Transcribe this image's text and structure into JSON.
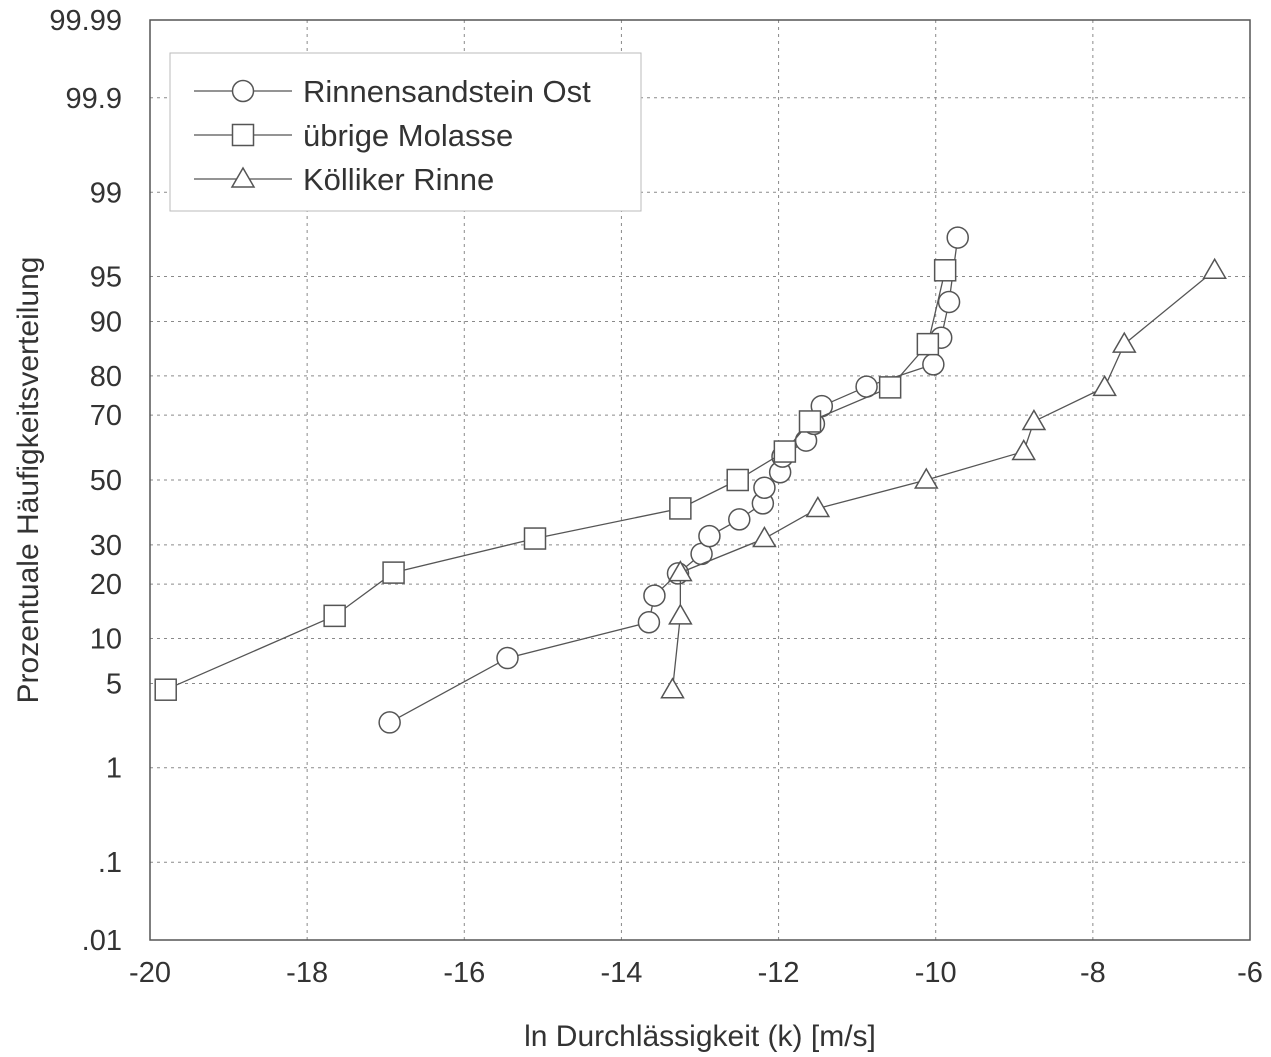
{
  "chart_data": {
    "type": "line",
    "title": "",
    "xlabel": "ln Durchlässigkeit (k) [m/s]",
    "ylabel": "Prozentuale Häufigkeitsverteilung",
    "xlim": [
      -20,
      -6
    ],
    "x_ticks": [
      -20,
      -18,
      -16,
      -14,
      -12,
      -10,
      -8,
      -6
    ],
    "x_tick_labels": [
      "-20",
      "-18",
      "-16",
      "-14",
      "-12",
      "-10",
      "-8",
      "-6"
    ],
    "y_scale": "probability",
    "ylim": [
      0.01,
      99.99
    ],
    "y_ticks": [
      0.01,
      0.1,
      1,
      5,
      10,
      20,
      30,
      50,
      70,
      80,
      90,
      95,
      99,
      99.9,
      99.99
    ],
    "y_tick_labels": [
      ".01",
      ".1",
      "1",
      "5",
      "10",
      "20",
      "30",
      "50",
      "70",
      "80",
      "90",
      "95",
      "99",
      "99.9",
      "99.99"
    ],
    "grid": true,
    "legend_position": "top-left",
    "series": [
      {
        "name": "Rinnensandstein Ost",
        "marker": "circle",
        "x": [
          -16.95,
          -15.45,
          -13.65,
          -13.58,
          -13.28,
          -12.98,
          -12.88,
          -12.5,
          -12.2,
          -12.18,
          -11.98,
          -11.95,
          -11.65,
          -11.55,
          -11.45,
          -10.88,
          -10.03,
          -9.93,
          -9.83,
          -9.72
        ],
        "y": [
          2.5,
          7.5,
          12.5,
          17.5,
          22.5,
          27.5,
          32.5,
          37.5,
          42.5,
          47.5,
          52.5,
          57.5,
          62.5,
          67.5,
          72.5,
          77.5,
          82.5,
          87.5,
          92.5,
          97.5
        ]
      },
      {
        "name": "übrige Molasse",
        "marker": "square",
        "x": [
          -19.8,
          -17.65,
          -16.9,
          -15.1,
          -13.25,
          -12.52,
          -11.92,
          -11.6,
          -10.58,
          -10.1,
          -9.88
        ],
        "y": [
          4.5,
          13.6,
          22.7,
          31.8,
          40.9,
          50,
          59.1,
          68.2,
          77.3,
          86.4,
          95.5
        ]
      },
      {
        "name": "Kölliker Rinne",
        "marker": "triangle",
        "x": [
          -13.35,
          -13.25,
          -13.25,
          -12.18,
          -11.5,
          -10.12,
          -8.88,
          -8.75,
          -7.85,
          -7.6,
          -6.45
        ],
        "y": [
          4.5,
          13.6,
          22.7,
          31.8,
          40.9,
          50,
          59.1,
          68.2,
          77.3,
          86.4,
          95.5
        ]
      }
    ]
  }
}
